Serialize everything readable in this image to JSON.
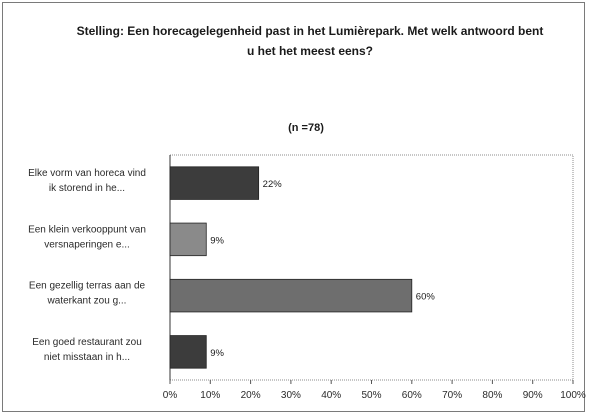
{
  "chart_data": {
    "type": "bar",
    "orientation": "horizontal",
    "title_lines": [
      "Stelling: Een horecagelegenheid past in het Lumièrepark. Met welk antwoord bent",
      "u het het meest eens?"
    ],
    "subtitle": "(n =78)",
    "categories": [
      [
        "Elke vorm van horeca vind",
        "ik storend in he..."
      ],
      [
        "Een klein verkooppunt van",
        "versnaperingen e..."
      ],
      [
        "Een gezellig terras aan de",
        "waterkant zou g..."
      ],
      [
        "Een goed restaurant zou",
        "niet misstaan in h..."
      ]
    ],
    "values": [
      22,
      9,
      60,
      9
    ],
    "data_labels": [
      "22%",
      "9%",
      "60%",
      "9%"
    ],
    "bar_colors": [
      "#3c3c3c",
      "#8a8a8a",
      "#6e6e6e",
      "#3c3c3c"
    ],
    "xlim": [
      0,
      100
    ],
    "xticks": [
      0,
      10,
      20,
      30,
      40,
      50,
      60,
      70,
      80,
      90,
      100
    ],
    "xtick_labels": [
      "0%",
      "10%",
      "20%",
      "30%",
      "40%",
      "50%",
      "60%",
      "70%",
      "80%",
      "90%",
      "100%"
    ],
    "grid": false,
    "legend": "none",
    "plot_border_color": "#8c8c8c"
  }
}
